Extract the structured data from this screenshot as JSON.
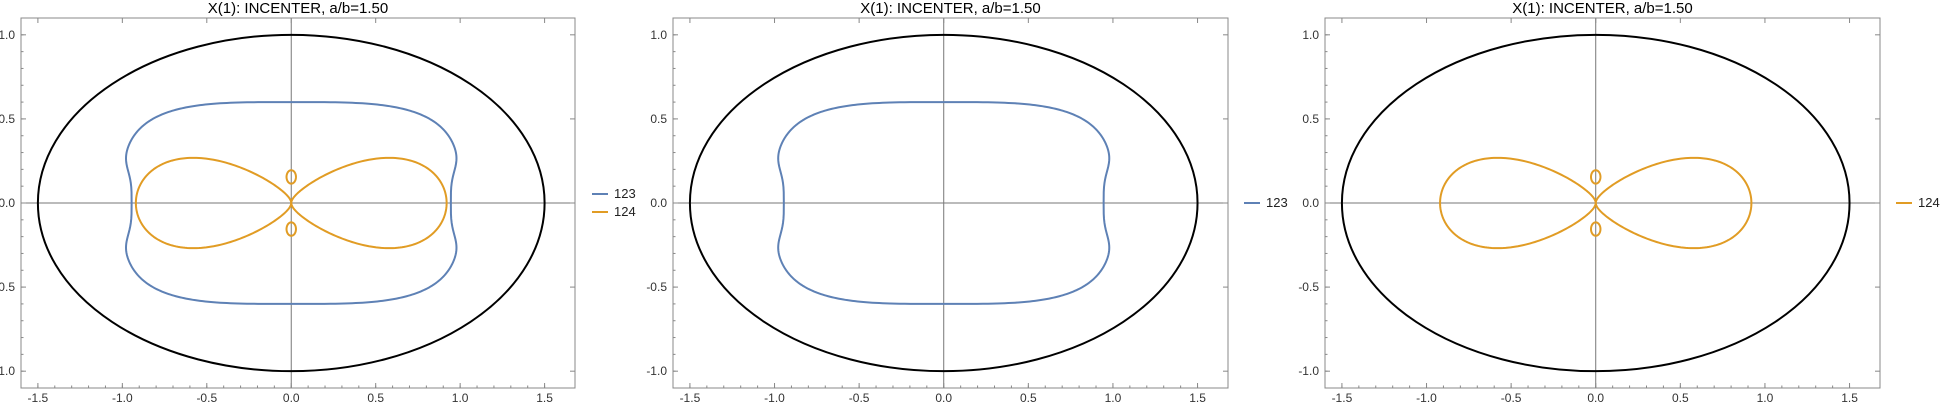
{
  "chart_data": [
    {
      "type": "line",
      "title": "X(1): INCENTER, a/b=1.50",
      "xlim": [
        -1.6,
        1.68
      ],
      "ylim": [
        -1.1,
        1.1
      ],
      "xticks": [
        "-1.5",
        "-1.0",
        "-0.5",
        "0.0",
        "0.5",
        "1.0",
        "1.5"
      ],
      "xtick_values": [
        -1.5,
        -1.0,
        -0.5,
        0.0,
        0.5,
        1.0,
        1.5
      ],
      "yticks": [
        "-1.0",
        "-0.5",
        "0.0",
        "0.5",
        "1.0"
      ],
      "ytick_values": [
        -1.0,
        -0.5,
        0.0,
        0.5,
        1.0
      ],
      "outer_ellipse": {
        "a": 1.5,
        "b": 1.0,
        "color": "#000000"
      },
      "legend_position": "right",
      "series": [
        {
          "name": "123",
          "color": "#5e81b5",
          "shape": "peanut",
          "x_extent": [
            -1.0,
            1.0
          ],
          "y_extent": [
            -0.6,
            0.6
          ]
        },
        {
          "name": "124",
          "color": "#e19c24",
          "shape": "figure-eight",
          "x_extent": [
            -0.92,
            0.92
          ],
          "y_extent": [
            -0.33,
            0.33
          ]
        }
      ]
    },
    {
      "type": "line",
      "title": "X(1): INCENTER, a/b=1.50",
      "xlim": [
        -1.6,
        1.68
      ],
      "ylim": [
        -1.1,
        1.1
      ],
      "xticks": [
        "-1.5",
        "-1.0",
        "-0.5",
        "0.0",
        "0.5",
        "1.0",
        "1.5"
      ],
      "xtick_values": [
        -1.5,
        -1.0,
        -0.5,
        0.0,
        0.5,
        1.0,
        1.5
      ],
      "yticks": [
        "-1.0",
        "-0.5",
        "0.0",
        "0.5",
        "1.0"
      ],
      "ytick_values": [
        -1.0,
        -0.5,
        0.0,
        0.5,
        1.0
      ],
      "outer_ellipse": {
        "a": 1.5,
        "b": 1.0,
        "color": "#000000"
      },
      "legend_position": "right",
      "series": [
        {
          "name": "123",
          "color": "#5e81b5",
          "shape": "peanut",
          "x_extent": [
            -1.0,
            1.0
          ],
          "y_extent": [
            -0.6,
            0.6
          ]
        }
      ]
    },
    {
      "type": "line",
      "title": "X(1): INCENTER, a/b=1.50",
      "xlim": [
        -1.6,
        1.68
      ],
      "ylim": [
        -1.1,
        1.1
      ],
      "xticks": [
        "-1.5",
        "-1.0",
        "-0.5",
        "0.0",
        "0.5",
        "1.0",
        "1.5"
      ],
      "xtick_values": [
        -1.5,
        -1.0,
        -0.5,
        0.0,
        0.5,
        1.0,
        1.5
      ],
      "yticks": [
        "-1.0",
        "-0.5",
        "0.0",
        "0.5",
        "1.0"
      ],
      "ytick_values": [
        -1.0,
        -0.5,
        0.0,
        0.5,
        1.0
      ],
      "outer_ellipse": {
        "a": 1.5,
        "b": 1.0,
        "color": "#000000"
      },
      "legend_position": "right",
      "series": [
        {
          "name": "124",
          "color": "#e19c24",
          "shape": "figure-eight",
          "x_extent": [
            -0.92,
            0.92
          ],
          "y_extent": [
            -0.33,
            0.33
          ]
        }
      ]
    }
  ]
}
